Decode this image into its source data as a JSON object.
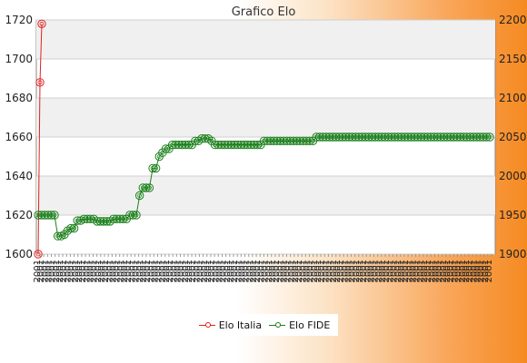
{
  "chart_data": {
    "title": "Grafico Elo",
    "type": "line",
    "y_left": {
      "min": 1600,
      "max": 1720,
      "ticks": [
        "1600",
        "1620",
        "1640",
        "1660",
        "1680",
        "1700",
        "1720"
      ]
    },
    "y_right": {
      "min": 1900,
      "max": 2200,
      "ticks": [
        "1900",
        "1950",
        "2000",
        "2050",
        "2100",
        "2150",
        "2200"
      ]
    },
    "series": [
      {
        "name": "Elo Italia",
        "color": "#e02020",
        "axis": "left",
        "values": [
          1600,
          1688,
          1718
        ]
      },
      {
        "name": "Elo FIDE",
        "color": "#1a7f1a",
        "axis": "right",
        "values": [
          1950,
          1950,
          1950,
          1950,
          1950,
          1950,
          1923,
          1923,
          1925,
          1930,
          1933,
          1933,
          1943,
          1943,
          1945,
          1945,
          1945,
          1945,
          1942,
          1942,
          1942,
          1942,
          1942,
          1945,
          1945,
          1945,
          1945,
          1945,
          1950,
          1950,
          1950,
          1975,
          1985,
          1985,
          1985,
          2010,
          2010,
          2025,
          2030,
          2035,
          2035,
          2040,
          2040,
          2040,
          2040,
          2040,
          2040,
          2040,
          2045,
          2045,
          2048,
          2048,
          2048,
          2045,
          2040,
          2040,
          2040,
          2040,
          2040,
          2040,
          2040,
          2040,
          2040,
          2040,
          2040,
          2040,
          2040,
          2040,
          2040,
          2045,
          2045,
          2045,
          2045,
          2045,
          2045,
          2045,
          2045,
          2045,
          2045,
          2045,
          2045,
          2045,
          2045,
          2045,
          2045,
          2050,
          2050,
          2050,
          2050,
          2050,
          2050,
          2050,
          2050,
          2050,
          2050,
          2050,
          2050,
          2050,
          2050,
          2050,
          2050,
          2050,
          2050,
          2050,
          2050,
          2050,
          2050,
          2050,
          2050,
          2050,
          2050,
          2050,
          2050,
          2050,
          2050,
          2050,
          2050,
          2050,
          2050,
          2050,
          2050,
          2050,
          2050,
          2050,
          2050,
          2050,
          2050,
          2050,
          2050,
          2050,
          2050,
          2050,
          2050,
          2050,
          2050,
          2050,
          2050,
          2050,
          2050
        ]
      }
    ],
    "x_ticks": [
      "2001",
      "2001",
      "2001",
      "2001",
      "2001",
      "2001",
      "2001",
      "2001",
      "2001",
      "2001",
      "2001",
      "2001",
      "2001",
      "2001",
      "2001",
      "2001",
      "2001",
      "2001",
      "2001",
      "2001",
      "2001",
      "2001",
      "2001",
      "2001",
      "2001",
      "2001",
      "2001",
      "2001",
      "2001",
      "2001",
      "2001",
      "2001",
      "2001",
      "2001",
      "2001",
      "2001",
      "2001",
      "2001",
      "2001",
      "2001",
      "2001",
      "2001",
      "2001",
      "2001",
      "2001",
      "2001",
      "2001",
      "2001",
      "2001",
      "2001",
      "2001",
      "2001",
      "2001",
      "2001",
      "2001",
      "2001",
      "2001",
      "2001",
      "2001",
      "2001",
      "2001",
      "2001",
      "2001",
      "2001",
      "2001",
      "2001",
      "2001",
      "2001",
      "2001",
      "2001",
      "2001",
      "2001",
      "2001",
      "2001",
      "2001",
      "2001",
      "2001",
      "2001",
      "2001",
      "2001",
      "2001",
      "2001",
      "2001",
      "2001",
      "2001",
      "2001",
      "2001",
      "2001",
      "2001",
      "2001",
      "2001",
      "2001",
      "2001",
      "2001",
      "2001",
      "2001",
      "2001",
      "2001",
      "2001",
      "2001",
      "2001",
      "2001",
      "2001",
      "2001",
      "2001",
      "2001",
      "2001",
      "2001",
      "2001",
      "2001",
      "2001",
      "2001",
      "2001",
      "2001",
      "2001",
      "2001",
      "2001",
      "2001",
      "2001",
      "2001"
    ],
    "legend_position": "bottom"
  }
}
